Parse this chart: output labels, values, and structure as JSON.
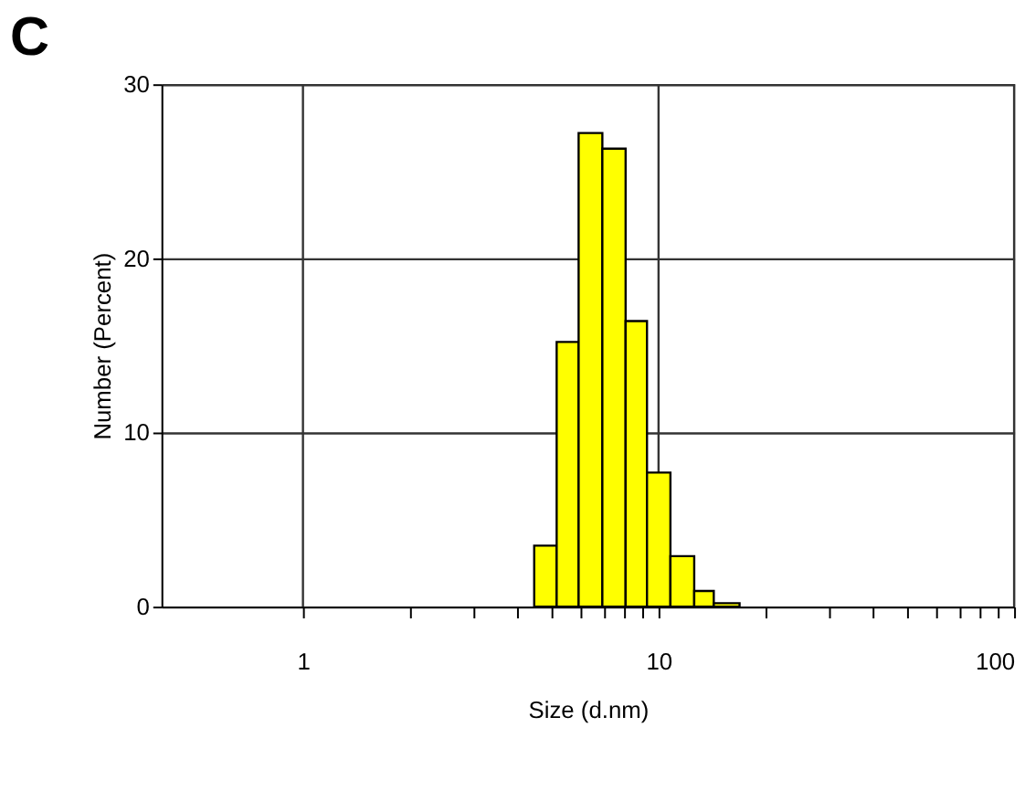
{
  "chart_data": {
    "type": "histogram",
    "title": "C",
    "xlabel": "Size (d.nm)",
    "ylabel": "Number (Percent)",
    "bins": [
      4.47,
      5.17,
      5.96,
      6.95,
      8.08,
      9.28,
      10.8,
      12.6,
      14.3,
      16.9
    ],
    "values": [
      3.5,
      15.2,
      27.2,
      26.3,
      16.4,
      7.7,
      2.9,
      0.9,
      0.2
    ],
    "color": "#ffff00",
    "log": "x",
    "grid": true,
    "xlim": [
      0.4,
      100
    ],
    "ylim": [
      0,
      30
    ],
    "xticks": [
      1,
      {
        "value": 2,
        "label": null
      },
      {
        "value": 3,
        "label": null
      },
      {
        "value": 4,
        "label": null
      },
      {
        "value": 5,
        "label": null
      },
      {
        "value": 6,
        "label": null
      },
      {
        "value": 7,
        "label": null
      },
      {
        "value": 8,
        "label": null
      },
      {
        "value": 9,
        "label": null
      },
      10,
      {
        "value": 20,
        "label": null
      },
      {
        "value": 30,
        "label": null
      },
      {
        "value": 40,
        "label": null
      },
      {
        "value": 50,
        "label": null
      },
      {
        "value": 60,
        "label": null
      },
      {
        "value": 70,
        "label": null
      },
      {
        "value": 80,
        "label": null
      },
      {
        "value": 90,
        "label": null
      },
      100
    ],
    "yticks": [
      0,
      10,
      20,
      30
    ]
  }
}
